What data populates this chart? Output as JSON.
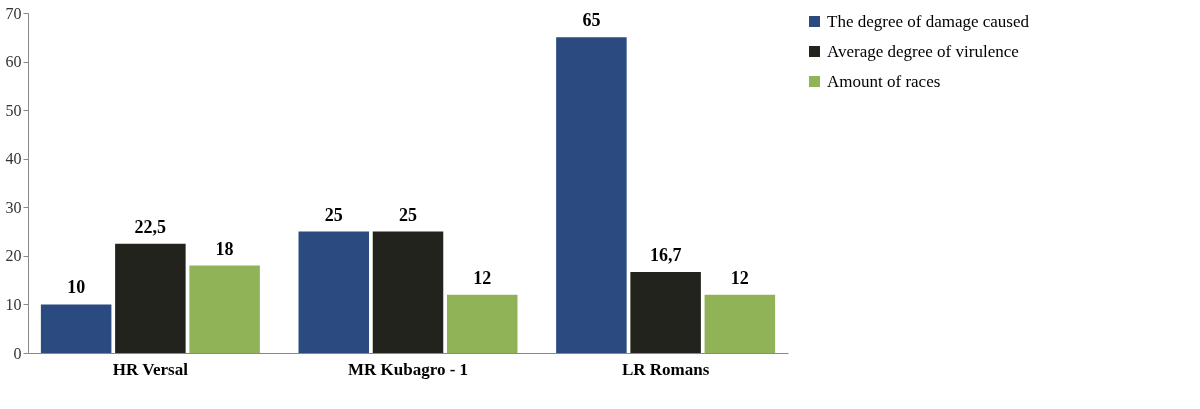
{
  "chart_data": {
    "type": "bar",
    "categories": [
      "HR Versal",
      "MR Kubagro - 1",
      "LR Romans"
    ],
    "series": [
      {
        "name": "The degree of damage caused",
        "color": "#2b4a80",
        "values": [
          10,
          25,
          65
        ],
        "value_labels": [
          "10",
          "25",
          "65"
        ]
      },
      {
        "name": "Average degree of virulence",
        "color": "#23231e",
        "values": [
          22.5,
          25,
          16.7
        ],
        "value_labels": [
          "22,5",
          "25",
          "16,7"
        ]
      },
      {
        "name": "Amount of races",
        "color": "#8fb356",
        "values": [
          18,
          12,
          12
        ],
        "value_labels": [
          "18",
          "12",
          "12"
        ]
      }
    ],
    "ylim": [
      0,
      70
    ],
    "yticks": [
      0,
      10,
      20,
      30,
      40,
      50,
      60,
      70
    ],
    "grid": false,
    "legend": "right"
  }
}
